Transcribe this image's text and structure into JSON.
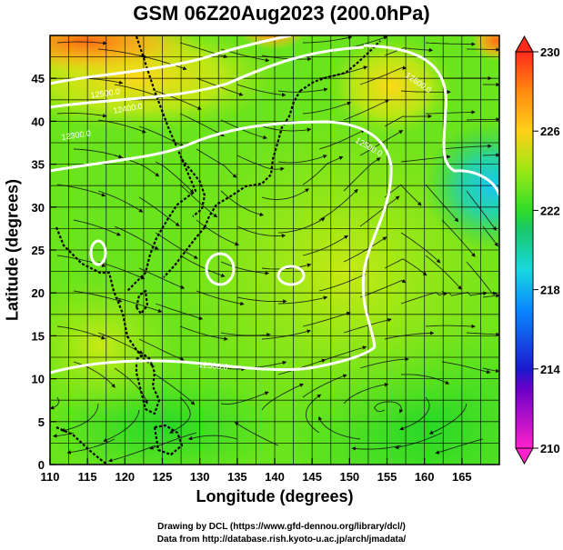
{
  "title": "GSM 06Z20Aug2023 (200.0hPa)",
  "x_axis": {
    "label": "Longitude (degrees)",
    "range": [
      110,
      170
    ],
    "ticks": [
      "110",
      "115",
      "120",
      "125",
      "130",
      "135",
      "140",
      "145",
      "150",
      "155",
      "160",
      "165"
    ]
  },
  "y_axis": {
    "label": "Latitude  (degrees)",
    "range": [
      0,
      50
    ],
    "ticks": [
      "0",
      "5",
      "10",
      "15",
      "20",
      "25",
      "30",
      "35",
      "40",
      "45"
    ]
  },
  "colorbar": {
    "range": [
      210,
      230
    ],
    "ticks": [
      "210",
      "214",
      "218",
      "222",
      "226",
      "230"
    ],
    "colors": {
      "210": "#ff22cc",
      "213": "#6a00c8",
      "214": "#1a1acc",
      "217": "#0a88ff",
      "219": "#18d8e0",
      "221": "#18c86a",
      "222": "#30dd28",
      "224": "#9ae814",
      "226": "#ffd018",
      "228": "#ff8a10",
      "230": "#ff2a1a"
    }
  },
  "contours": [
    {
      "label": "12300.0"
    },
    {
      "label": "12400.0"
    },
    {
      "label": "12500.0"
    },
    {
      "label": "12600.0"
    },
    {
      "label": "12500.0"
    },
    {
      "label": "12500.0"
    }
  ],
  "credits": {
    "drawing": "Drawing by DCL (https://www.gfd-dennou.org/library/dcl/)",
    "data": "Data from http://database.rish.kyoto-u.ac.jp/arch/jmadata/"
  }
}
